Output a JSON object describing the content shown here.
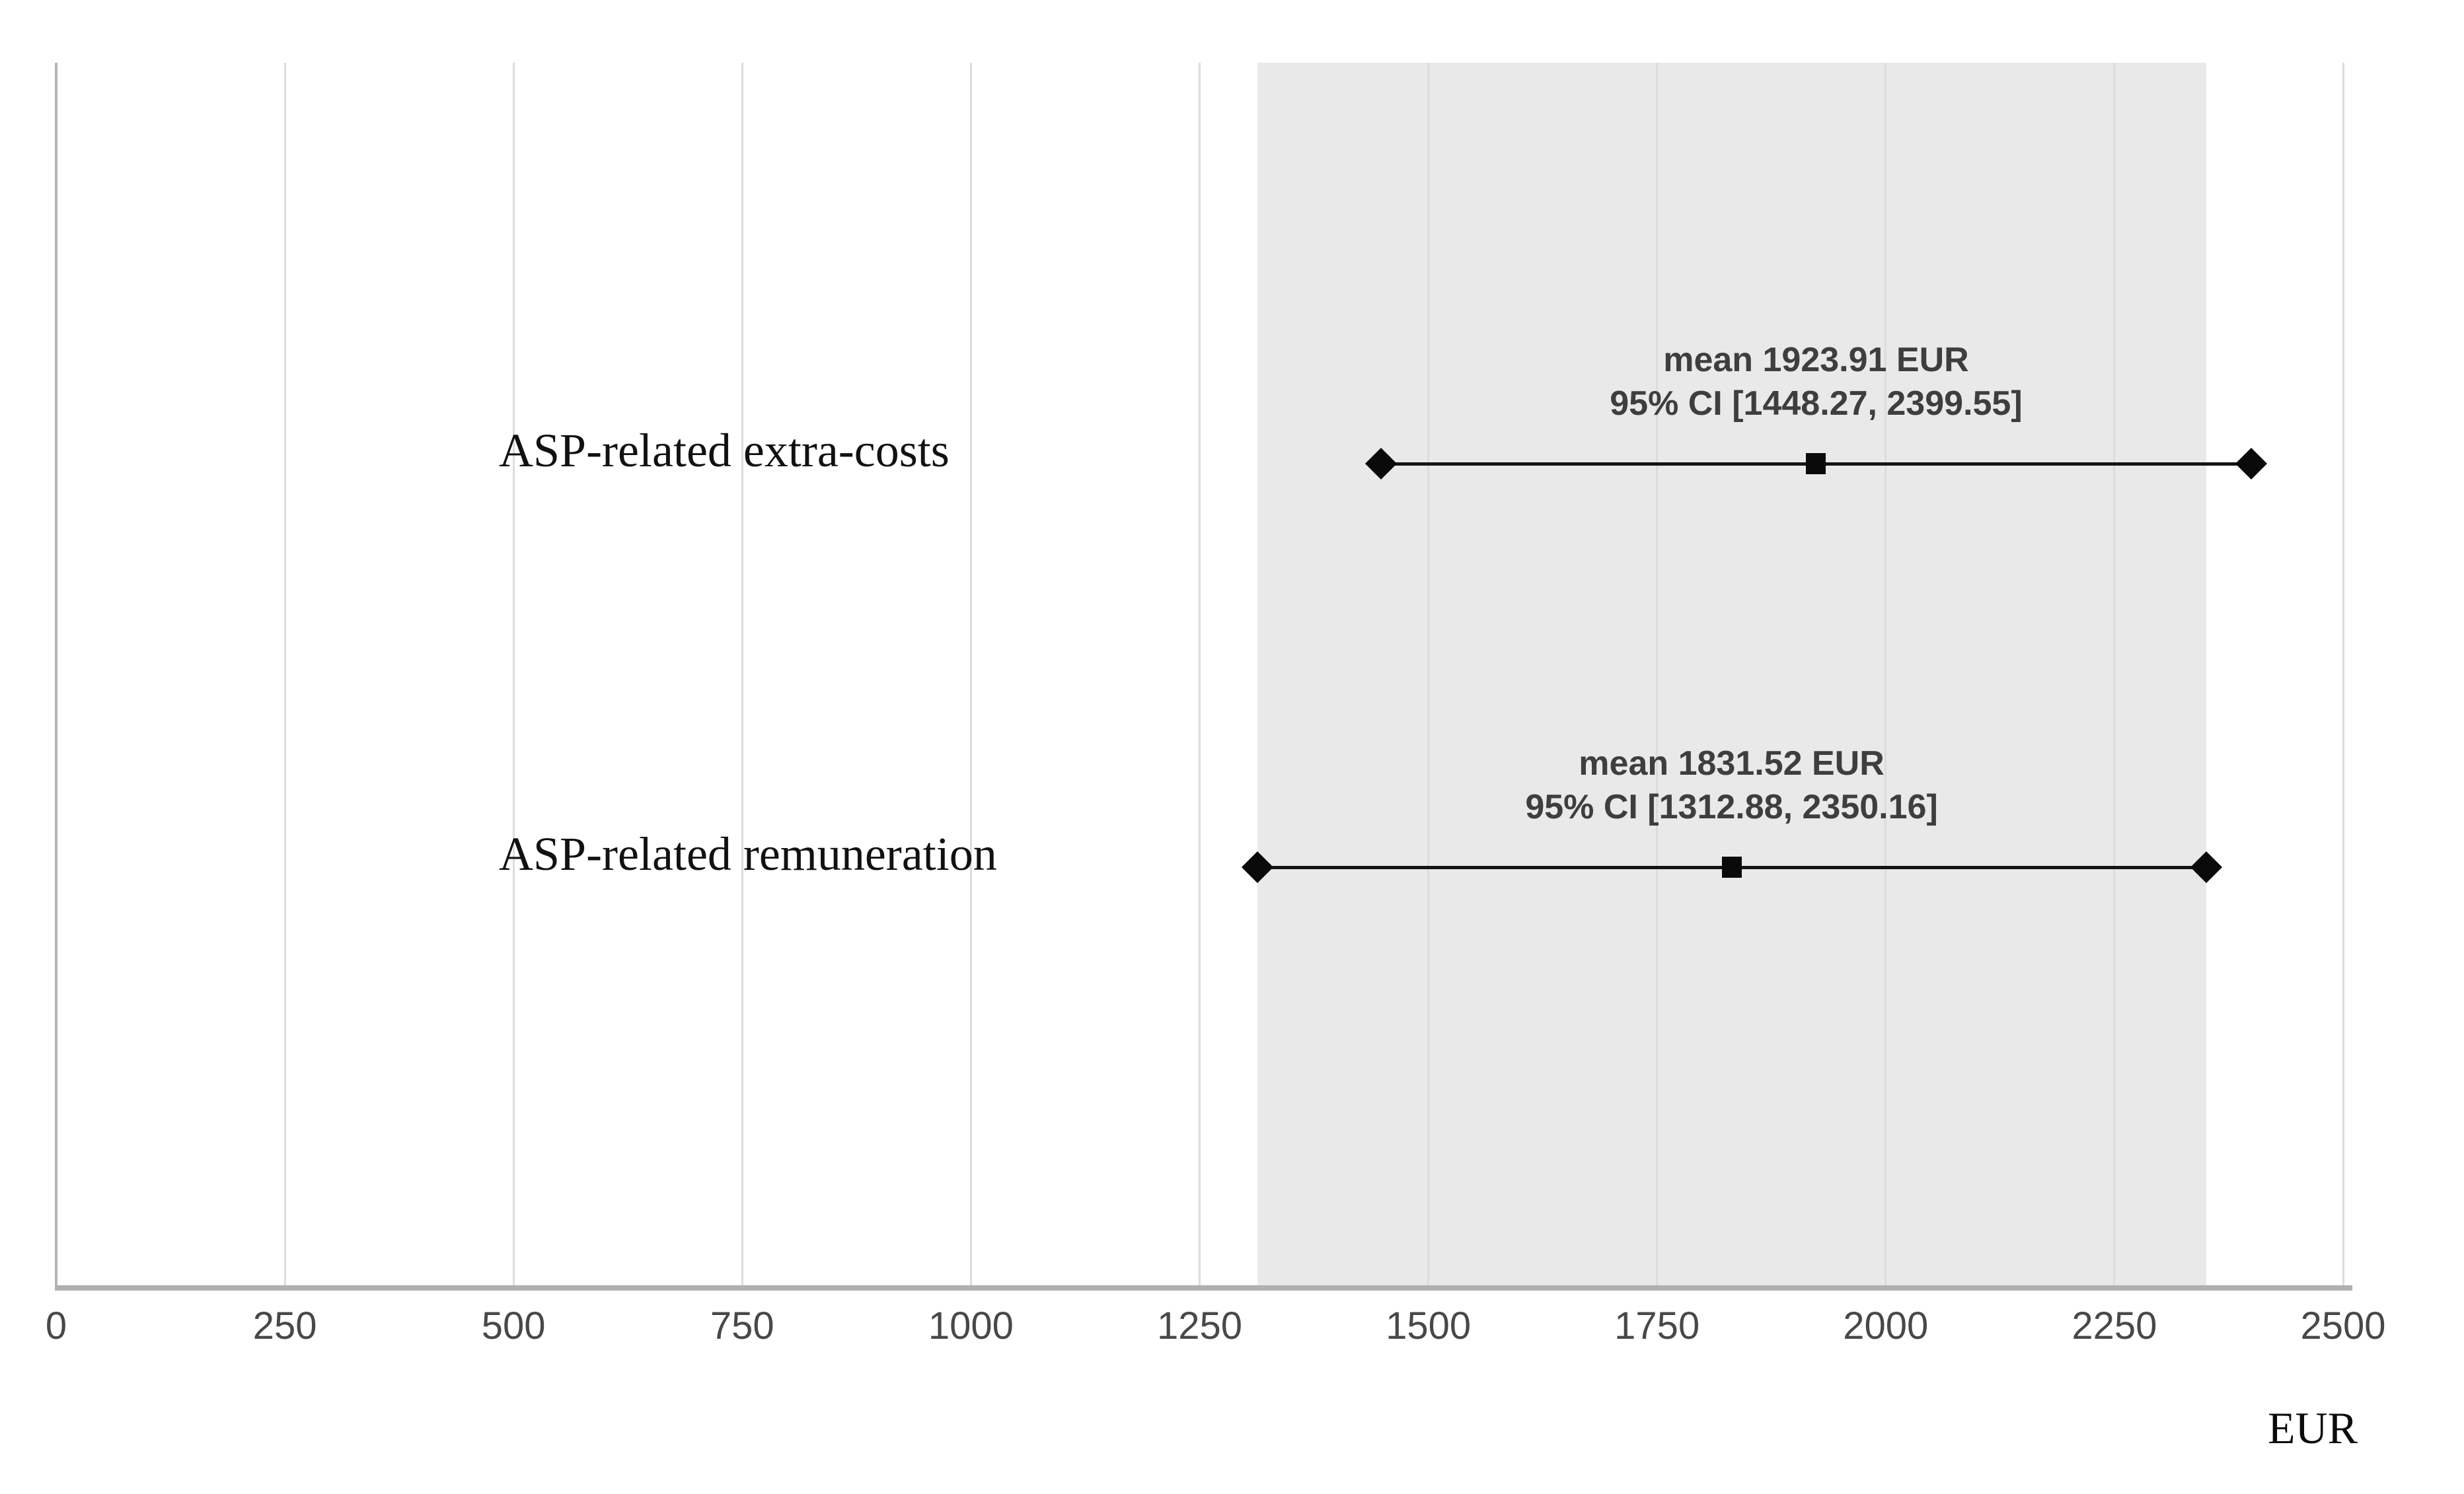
{
  "chart_data": {
    "type": "scatter",
    "subtype": "mean-ci-dot-plot",
    "title": "",
    "xlabel": "EUR",
    "ylabel": "",
    "xlim": [
      0,
      2500
    ],
    "xticks": [
      0,
      250,
      500,
      750,
      1000,
      1250,
      1500,
      1750,
      2000,
      2250,
      2500
    ],
    "grid": "vertical-gridlines-on",
    "legend": "none",
    "shaded_band": {
      "from": 1312.88,
      "to": 2350.16
    },
    "rows": [
      {
        "label": "ASP-related extra-costs",
        "mean": 1923.91,
        "ci_low": 1448.27,
        "ci_high": 2399.55,
        "annotation_line1": "mean 1923.91 EUR",
        "annotation_line2": "95% CI [1448.27, 2399.55]"
      },
      {
        "label": "ASP-related remuneration",
        "mean": 1831.52,
        "ci_low": 1312.88,
        "ci_high": 2350.16,
        "annotation_line1": "mean 1831.52 EUR",
        "annotation_line2": "95% CI [1312.88, 2350.16]"
      }
    ],
    "colors": {
      "background": "#ffffff",
      "shaded_band": "#e9e9e9",
      "gridline": "#dcdcdc",
      "y_axis_line": "#b5b5b5",
      "x_axis_line": "#b0b0b0",
      "ci_line_and_markers": "#0a0a0a",
      "annotation_text": "#3e3e3e",
      "tick_text": "#484848",
      "label_text": "#111111"
    }
  }
}
